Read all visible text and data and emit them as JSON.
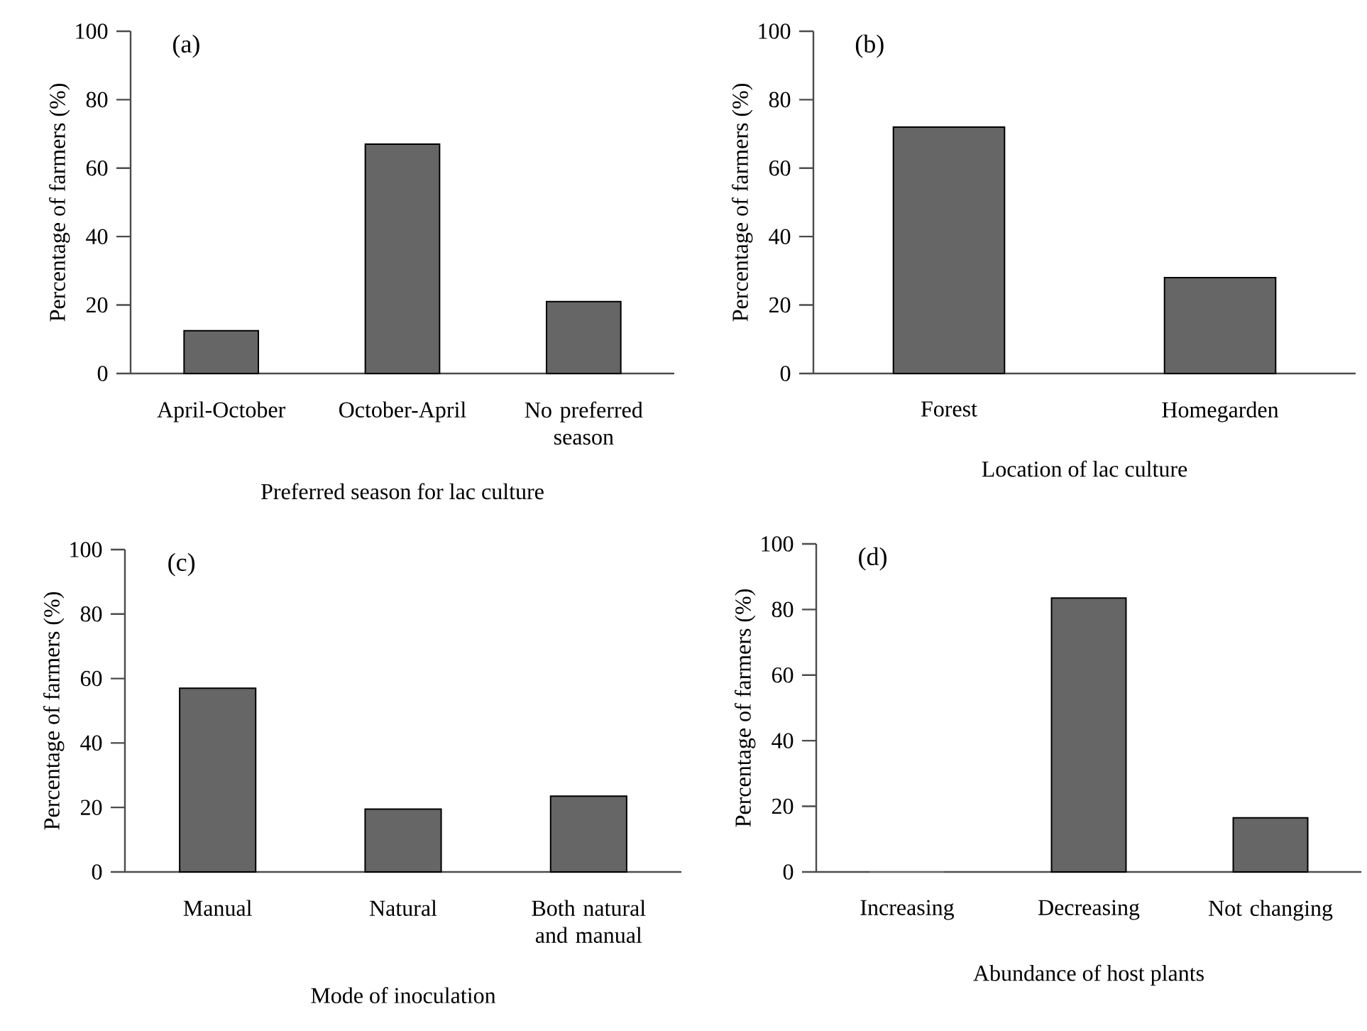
{
  "chart_data": [
    {
      "type": "bar",
      "annotations": [
        "(a)"
      ],
      "xlabel": "Preferred season for lac culture",
      "ylabel": "Percentage of farmers (%)",
      "categories": [
        "April-October",
        "October-April",
        "No preferred season"
      ],
      "values": [
        12.5,
        67,
        21
      ],
      "color": "#666666",
      "ylim": [
        0,
        100
      ],
      "yticks": [
        0,
        20,
        40,
        60,
        80,
        100
      ]
    },
    {
      "type": "bar",
      "annotations": [
        "(b)"
      ],
      "xlabel": "Location of lac culture",
      "ylabel": "Percentage of farmers (%)",
      "categories": [
        "Forest",
        "Homegarden"
      ],
      "values": [
        72,
        28
      ],
      "color": "#666666",
      "ylim": [
        0,
        100
      ],
      "yticks": [
        0,
        20,
        40,
        60,
        80,
        100
      ]
    },
    {
      "type": "bar",
      "annotations": [
        "(c)"
      ],
      "xlabel": "Mode of inoculation",
      "ylabel": "Percentage of farmers (%)",
      "categories": [
        "Manual",
        "Natural",
        "Both natural and manual"
      ],
      "values": [
        57,
        19.5,
        23.5
      ],
      "color": "#666666",
      "ylim": [
        0,
        100
      ],
      "yticks": [
        0,
        20,
        40,
        60,
        80,
        100
      ]
    },
    {
      "type": "bar",
      "annotations": [
        "(d)"
      ],
      "xlabel": "Abundance of host plants",
      "ylabel": "Percentage of farmers (%)",
      "categories": [
        "Increasing",
        "Decreasing",
        "Not changing"
      ],
      "values": [
        0,
        83.5,
        16.5
      ],
      "color": "#666666",
      "ylim": [
        0,
        100
      ],
      "yticks": [
        0,
        20,
        40,
        60,
        80,
        100
      ]
    }
  ]
}
